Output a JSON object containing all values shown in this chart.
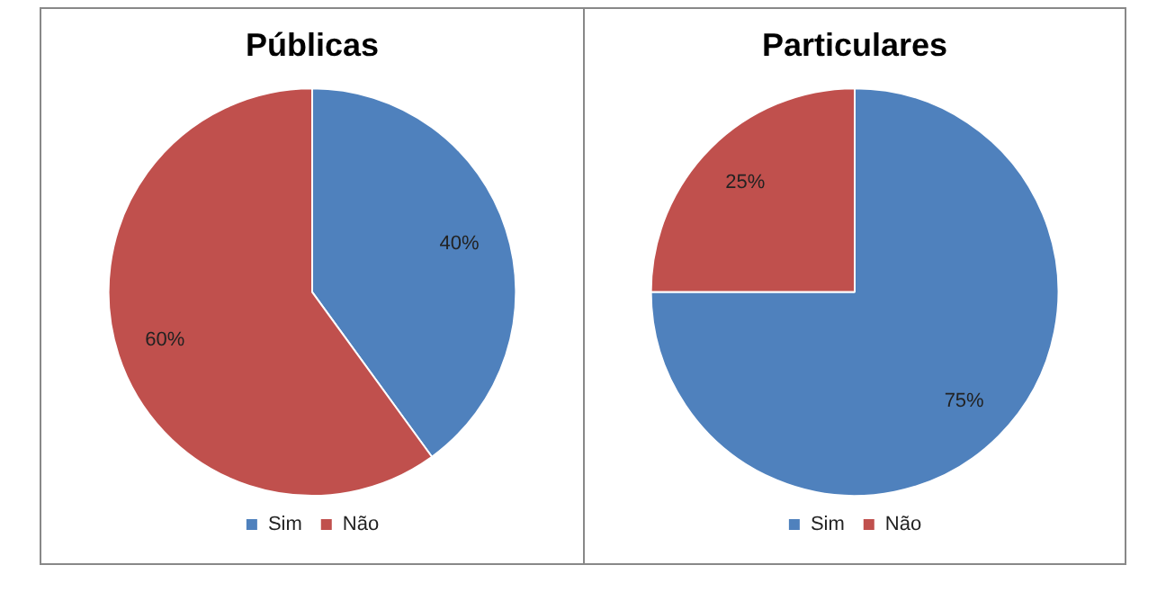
{
  "chart_data": [
    {
      "type": "pie",
      "title": "Públicas",
      "categories": [
        "Sim",
        "Não"
      ],
      "values": [
        40,
        60
      ],
      "colors": [
        "#4f81bd",
        "#c0504d"
      ],
      "value_labels": [
        "40%",
        "60%"
      ],
      "legend": "bottom"
    },
    {
      "type": "pie",
      "title": "Particulares",
      "categories": [
        "Sim",
        "Não"
      ],
      "values": [
        75,
        25
      ],
      "colors": [
        "#4f81bd",
        "#c0504d"
      ],
      "value_labels": [
        "75%",
        "25%"
      ],
      "legend": "bottom"
    }
  ]
}
